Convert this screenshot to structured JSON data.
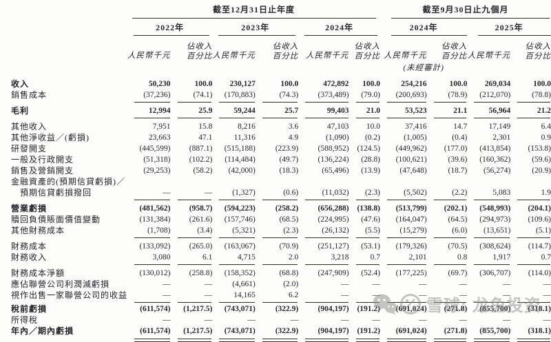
{
  "page": {
    "background": "#fdfdfb",
    "text_color": "#24242b",
    "rule_color": "#2b2b2b"
  },
  "table": {
    "header": {
      "group_annual": "截至12月31日止年度",
      "group_interim": "截至9月30日止九個月",
      "years": [
        "2022年",
        "2023年",
        "2024年",
        "2024年",
        "2025年"
      ],
      "amount_label": "人民幣千元",
      "pct_line1": "佔收入",
      "pct_line2": "百分比",
      "unaudited": "(未經審計)"
    },
    "rows": [
      {
        "label": "收入",
        "bold": true,
        "rule": "none",
        "gap": false,
        "values": [
          "50,230",
          "100.0",
          "230,127",
          "100.0",
          "472,892",
          "100.0",
          "254,216",
          "100.0",
          "269,034",
          "100.0"
        ]
      },
      {
        "label": "銷售成本",
        "bold": false,
        "rule": "single",
        "gap": false,
        "values": [
          "(37,236)",
          "(74.1)",
          "(170,883)",
          "(74.3)",
          "(373,489)",
          "(79.0)",
          "(200,693)",
          "(78.9)",
          "(212,070)",
          "(78.8)"
        ]
      },
      {
        "label": "毛利",
        "bold": true,
        "rule": "single",
        "gap": true,
        "values": [
          "12,994",
          "25.9",
          "59,244",
          "25.7",
          "99,403",
          "21.0",
          "53,523",
          "21.1",
          "56,964",
          "21.2"
        ]
      },
      {
        "label": "其他收入",
        "bold": false,
        "rule": "none",
        "gap": true,
        "values": [
          "7,951",
          "15.8",
          "8,216",
          "3.6",
          "47,103",
          "10.0",
          "37,416",
          "14.7",
          "17,149",
          "6.4"
        ]
      },
      {
        "label": "其他淨收益／(虧損)",
        "bold": false,
        "rule": "none",
        "gap": false,
        "values": [
          "23,663",
          "47.1",
          "11,316",
          "4.9",
          "(1,090)",
          "(0.2)",
          "(1,005)",
          "(0.4)",
          "2,301",
          "0.9"
        ]
      },
      {
        "label": "研發開支",
        "bold": false,
        "rule": "none",
        "gap": false,
        "values": [
          "(445,599)",
          "(887.1)",
          "(515,188)",
          "(223.9)",
          "(588,952)",
          "(124.5)",
          "(449,962)",
          "(177.0)",
          "(413,854)",
          "(153.8)"
        ]
      },
      {
        "label": "一般及行政開支",
        "bold": false,
        "rule": "none",
        "gap": false,
        "values": [
          "(51,318)",
          "(102.2)",
          "(114,484)",
          "(49.7)",
          "(136,224)",
          "(28.8)",
          "(100,621)",
          "(39.6)",
          "(160,362)",
          "(59.6)"
        ]
      },
      {
        "label": "銷售及營銷開支",
        "bold": false,
        "rule": "none",
        "gap": false,
        "values": [
          "(29,253)",
          "(58.2)",
          "(42,000)",
          "(18.3)",
          "(65,496)",
          "(13.9)",
          "(47,648)",
          "(18.7)",
          "(56,274)",
          "(20.9)"
        ]
      },
      {
        "label": "金融資產的(預期信貸虧損)／",
        "bold": false,
        "rule": "none",
        "gap": false,
        "values": [
          "",
          "",
          "",
          "",
          "",
          "",
          "",
          "",
          "",
          ""
        ]
      },
      {
        "label": "預期信貸虧損撥回",
        "indent": true,
        "bold": false,
        "rule": "single",
        "gap": false,
        "values": [
          "—",
          "—",
          "(1,327)",
          "(0.6)",
          "(11,032)",
          "(2.3)",
          "(5,502)",
          "(2.2)",
          "5,083",
          "1.9"
        ]
      },
      {
        "label": "營業虧損",
        "bold": true,
        "rule": "none",
        "gap": true,
        "values": [
          "(481,562)",
          "(958.7)",
          "(594,223)",
          "(258.2)",
          "(656,288)",
          "(138.8)",
          "(513,799)",
          "(202.1)",
          "(548,993)",
          "(204.1)"
        ]
      },
      {
        "label": "贖回負債賬面價值變動",
        "bold": false,
        "rule": "none",
        "gap": false,
        "values": [
          "(131,384)",
          "(261.6)",
          "(157,746)",
          "(68.5)",
          "(224,995)",
          "(47.6)",
          "(164,047)",
          "(64.5)",
          "(294,973)",
          "(109.6)"
        ]
      },
      {
        "label": "其他財務成本",
        "bold": false,
        "rule": "single",
        "gap": false,
        "values": [
          "(1,708)",
          "(3.4)",
          "(5,321)",
          "(2.3)",
          "(26,132)",
          "(5.5)",
          "(15,279)",
          "(6.0)",
          "(13,651)",
          "(5.1)"
        ]
      },
      {
        "label": "財務成本",
        "bold": false,
        "rule": "none",
        "gap": true,
        "values": [
          "(133,092)",
          "(265.0)",
          "(163,067)",
          "(70.9)",
          "(251,127)",
          "(53.1)",
          "(179,326)",
          "(70.5)",
          "(308,624)",
          "(114.7)"
        ]
      },
      {
        "label": "財務收入",
        "bold": false,
        "rule": "single",
        "gap": false,
        "values": [
          "3,080",
          "6.1",
          "4,715",
          "2.0",
          "3,218",
          "0.7",
          "2,101",
          "0.8",
          "1,917",
          "0.7"
        ]
      },
      {
        "label": "財務成本淨額",
        "bold": false,
        "rule": "none",
        "gap": true,
        "values": [
          "(130,012)",
          "(258.8)",
          "(158,352)",
          "(68.8)",
          "(247,909)",
          "(52.4)",
          "(177,225)",
          "(69.7)",
          "(306,707)",
          "(114.0)"
        ]
      },
      {
        "label": "應佔聯營公司利潤減虧損",
        "bold": false,
        "rule": "none",
        "gap": false,
        "values": [
          "—",
          "—",
          "(4,661)",
          "(2.0)",
          "—",
          "—",
          "—",
          "—",
          "—",
          "—"
        ]
      },
      {
        "label": "視作出售一家聯營公司的收益",
        "bold": false,
        "rule": "single",
        "gap": false,
        "values": [
          "—",
          "—",
          "14,165",
          "6.2",
          "—",
          "—",
          "—",
          "—",
          "—",
          "—"
        ]
      },
      {
        "label": "稅前虧損",
        "bold": true,
        "rule": "none",
        "gap2": true,
        "values": [
          "(611,574)",
          "(1,217.5)",
          "(743,071)",
          "(322.9)",
          "(904,197)",
          "(191.2)",
          "(691,024)",
          "(271.8)",
          "(855,700)",
          "(318.1)"
        ]
      },
      {
        "label": "所得稅",
        "bold": false,
        "rule": "none",
        "gap": false,
        "values": [
          "—",
          "—",
          "—",
          "—",
          "—",
          "—",
          "—",
          "—",
          "—",
          "—"
        ]
      },
      {
        "label": "年內／期內虧損",
        "bold": true,
        "rule": "double",
        "gap": false,
        "values": [
          "(611,574)",
          "(1,217.5)",
          "(743,071)",
          "(322.9)",
          "(904,197)",
          "(191.2)",
          "(691,024)",
          "(271.8)",
          "(855,700)",
          "(318.1)"
        ]
      }
    ]
  },
  "watermark": {
    "icons": [
      "wechat-icon",
      "xueqiu-icon"
    ],
    "text": "雪球: 龙鱼投资",
    "color": "#8b8b8b"
  }
}
